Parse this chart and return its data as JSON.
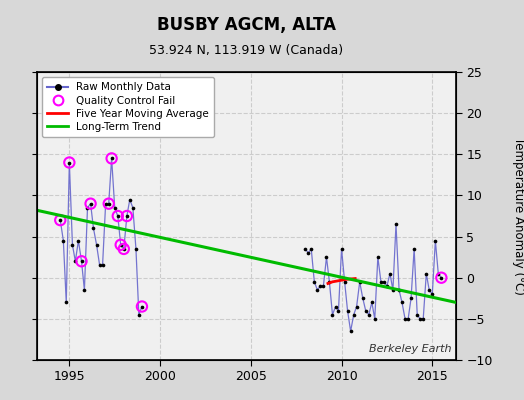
{
  "title": "BUSBY AGCM, ALTA",
  "subtitle": "53.924 N, 113.919 W (Canada)",
  "ylabel": "Temperature Anomaly (°C)",
  "credit": "Berkeley Earth",
  "xlim": [
    1993.2,
    2016.3
  ],
  "ylim": [
    -10,
    25
  ],
  "yticks": [
    -10,
    -5,
    0,
    5,
    10,
    15,
    20,
    25
  ],
  "xticks": [
    1995,
    2000,
    2005,
    2010,
    2015
  ],
  "bg_color": "#d8d8d8",
  "plot_bg": "#f0f0f0",
  "segment1_x": [
    1994.5,
    1994.67,
    1994.83,
    1995.0,
    1995.17,
    1995.33,
    1995.5,
    1995.67,
    1995.83,
    1996.0,
    1996.17,
    1996.33,
    1996.5,
    1996.67,
    1996.83,
    1997.0,
    1997.17,
    1997.33,
    1997.5,
    1997.67,
    1997.83,
    1998.0,
    1998.17,
    1998.33,
    1998.5,
    1998.67,
    1998.83,
    1999.0
  ],
  "segment1_y": [
    7.0,
    4.5,
    -3.0,
    14.0,
    4.0,
    2.0,
    4.5,
    2.0,
    -1.5,
    8.5,
    9.0,
    6.0,
    4.0,
    1.5,
    1.5,
    9.0,
    9.0,
    14.5,
    8.5,
    7.5,
    4.0,
    3.5,
    7.5,
    9.5,
    8.5,
    3.5,
    -4.5,
    -3.5
  ],
  "segment2_x": [
    2008.0,
    2008.17,
    2008.33,
    2008.5,
    2008.67,
    2008.83,
    2009.0,
    2009.17,
    2009.33,
    2009.5,
    2009.67,
    2009.83,
    2010.0,
    2010.17,
    2010.33,
    2010.5,
    2010.67,
    2010.83,
    2011.0,
    2011.17,
    2011.33,
    2011.5,
    2011.67,
    2011.83,
    2012.0,
    2012.17,
    2012.33,
    2012.5,
    2012.67,
    2012.83,
    2013.0,
    2013.17,
    2013.33,
    2013.5,
    2013.67,
    2013.83,
    2014.0,
    2014.17,
    2014.33,
    2014.5,
    2014.67,
    2014.83,
    2015.0,
    2015.17,
    2015.33,
    2015.5
  ],
  "segment2_y": [
    3.5,
    3.0,
    3.5,
    -0.5,
    -1.5,
    -1.0,
    -1.0,
    2.5,
    -0.5,
    -4.5,
    -3.5,
    -4.0,
    3.5,
    -0.5,
    -4.0,
    -6.5,
    -4.5,
    -3.5,
    -0.5,
    -2.5,
    -4.0,
    -4.5,
    -3.0,
    -5.0,
    2.5,
    -0.5,
    -0.5,
    -1.0,
    0.5,
    -1.5,
    6.5,
    -1.5,
    -3.0,
    -5.0,
    -5.0,
    -2.5,
    3.5,
    -4.5,
    -5.0,
    -5.0,
    0.5,
    -1.5,
    -2.0,
    4.5,
    0.5,
    0.0
  ],
  "qc_fail_x": [
    1994.5,
    1995.0,
    1995.67,
    1996.17,
    1997.17,
    1997.33,
    1997.67,
    1997.83,
    1998.0,
    1998.17,
    1999.0,
    2015.5
  ],
  "qc_fail_y": [
    7.0,
    14.0,
    2.0,
    9.0,
    9.0,
    14.5,
    7.5,
    4.0,
    3.5,
    7.5,
    -3.5,
    0.0
  ],
  "moving_avg_x": [
    2009.25,
    2009.5,
    2009.75,
    2010.0,
    2010.25,
    2010.5,
    2010.75
  ],
  "moving_avg_y": [
    -0.7,
    -0.5,
    -0.4,
    -0.3,
    -0.2,
    -0.15,
    -0.1
  ],
  "trend_x": [
    1993.2,
    2016.3
  ],
  "trend_y": [
    8.2,
    -3.0
  ],
  "line_color": "#6666cc",
  "dot_color": "#000000",
  "qc_color": "#ff00ff",
  "ma_color": "#ff0000",
  "trend_color": "#00bb00"
}
